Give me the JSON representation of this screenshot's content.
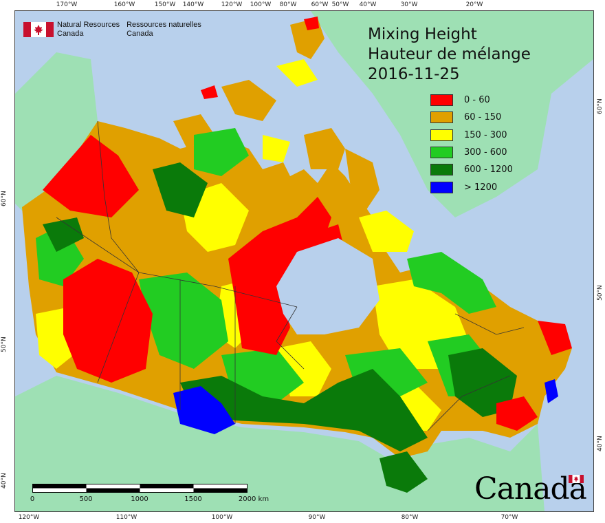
{
  "header": {
    "title_en": "Mixing Height",
    "title_fr": "Hauteur de mélange",
    "date": "2016-11-25"
  },
  "agency": {
    "name_en_line1": "Natural Resources",
    "name_en_line2": "Canada",
    "name_fr_line1": "Ressources naturelles",
    "name_fr_line2": "Canada"
  },
  "legend": {
    "items": [
      {
        "label": "0 - 60",
        "color": "#ff0000"
      },
      {
        "label": "60 - 150",
        "color": "#e0a000"
      },
      {
        "label": "150 - 300",
        "color": "#ffff00"
      },
      {
        "label": "300 - 600",
        "color": "#22cc22"
      },
      {
        "label": "600 - 1200",
        "color": "#0a7a0a"
      },
      {
        "label": "> 1200",
        "color": "#0000ff"
      }
    ]
  },
  "graticule": {
    "top": [
      "170°W",
      "160°W",
      "150°W",
      "140°W",
      "120°W",
      "100°W",
      "80°W",
      "60°W",
      "50°W",
      "40°W",
      "30°W",
      "20°W"
    ],
    "bottom": [
      "120°W",
      "110°W",
      "100°W",
      "90°W",
      "80°W",
      "70°W"
    ],
    "left": [
      "60°N",
      "50°N",
      "40°N"
    ],
    "right": [
      "60°N",
      "50°N",
      "40°N"
    ]
  },
  "scale_bar": {
    "labels": [
      "0",
      "500",
      "1000",
      "1500",
      "2000 km"
    ]
  },
  "wordmark": {
    "text": "Canada"
  },
  "colors": {
    "ocean": "#b8d0ec",
    "foreign_land": "#9ee0b4",
    "boundary": "#333333"
  }
}
